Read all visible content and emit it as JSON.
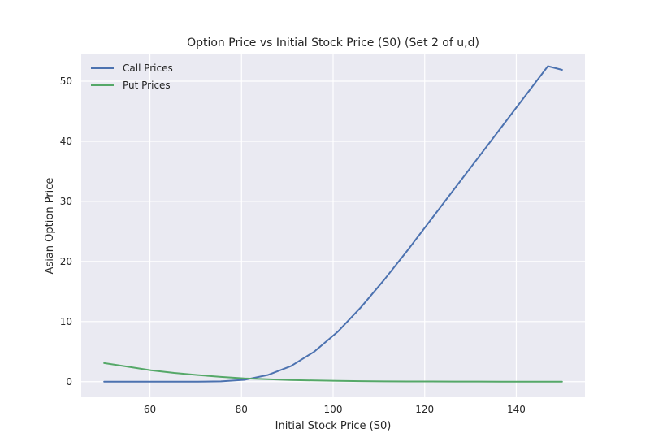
{
  "chart_data": {
    "type": "line",
    "title": "Option Price vs Initial Stock Price (S0) (Set 2 of u,d)",
    "xlabel": "Initial Stock Price (S0)",
    "ylabel": "Asian Option Price",
    "xlim": [
      45,
      155
    ],
    "ylim": [
      -2.6,
      54.6
    ],
    "xticks": [
      60,
      80,
      100,
      120,
      140
    ],
    "yticks": [
      0,
      10,
      20,
      30,
      40,
      50
    ],
    "grid": true,
    "legend_position": "top-left",
    "x": [
      50,
      55.1,
      60.2,
      65.3,
      70.4,
      75.5,
      80.6,
      85.7,
      90.8,
      95.9,
      101,
      106.1,
      111.2,
      116.3,
      121.4,
      126.5,
      131.6,
      136.7,
      141.8,
      146.9,
      150
    ],
    "series": [
      {
        "name": "Call Prices",
        "color": "#4c72b0",
        "values": [
          0.0,
          0.0,
          0.0,
          0.0,
          0.0,
          0.05,
          0.3,
          1.1,
          2.6,
          5.0,
          8.3,
          12.4,
          17.0,
          21.9,
          27.0,
          32.1,
          37.2,
          42.3,
          47.4,
          52.5,
          51.9
        ]
      },
      {
        "name": "Put Prices",
        "color": "#55a868",
        "values": [
          3.1,
          2.5,
          1.9,
          1.45,
          1.1,
          0.8,
          0.55,
          0.4,
          0.28,
          0.2,
          0.13,
          0.09,
          0.06,
          0.04,
          0.03,
          0.02,
          0.015,
          0.01,
          0.01,
          0.01,
          0.01
        ]
      }
    ]
  }
}
